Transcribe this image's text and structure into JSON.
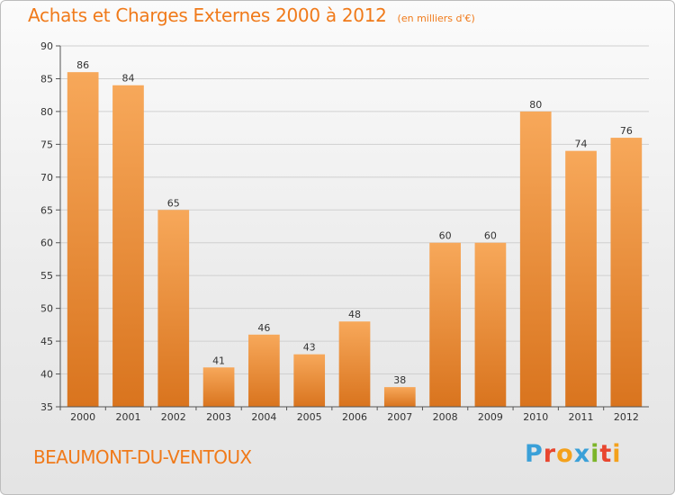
{
  "title": "Achats et Charges Externes 2000 à 2012",
  "unit": "(en milliers d'€)",
  "commune": "BEAUMONT-DU-VENTOUX",
  "logo": {
    "text": "Proxiti",
    "colors": [
      "#3aa0d8",
      "#e8462f",
      "#f4a11c",
      "#3aa0d8",
      "#7cb52a",
      "#e8462f",
      "#f4a11c"
    ]
  },
  "colors": {
    "title": "#f07a1a",
    "bar_top": "#f7a85a",
    "bar_bottom": "#d9741e",
    "grid": "#d0d0d0",
    "axis": "#555555"
  },
  "chart_data": {
    "type": "bar",
    "title": "Achats et Charges Externes 2000 à 2012",
    "xlabel": "",
    "ylabel": "",
    "categories": [
      "2000",
      "2001",
      "2002",
      "2003",
      "2004",
      "2005",
      "2006",
      "2007",
      "2008",
      "2009",
      "2010",
      "2011",
      "2012"
    ],
    "values": [
      86,
      84,
      65,
      41,
      46,
      43,
      48,
      38,
      60,
      60,
      80,
      74,
      76
    ],
    "ylim": [
      35,
      90
    ],
    "yticks": [
      35,
      40,
      45,
      50,
      55,
      60,
      65,
      70,
      75,
      80,
      85,
      90
    ],
    "grid": true
  }
}
